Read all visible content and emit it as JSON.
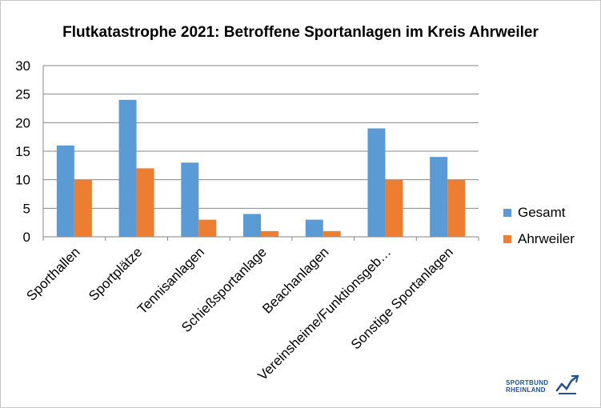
{
  "chart_data": {
    "type": "bar",
    "title": "Flutkatastrophe 2021: Betroffene Sportanlagen im Kreis Ahrweiler",
    "categories": [
      "Sporthallen",
      "Sportplätze",
      "Tennisanlagen",
      "Schießsportanlage",
      "Beachanlagen",
      "Vereinsheime/Funktionsgeb…",
      "Sonstige Sportanlagen"
    ],
    "series": [
      {
        "name": "Gesamt",
        "values": [
          16,
          24,
          13,
          4,
          3,
          19,
          14
        ],
        "color": "#5b9bd5"
      },
      {
        "name": "Ahrweiler",
        "values": [
          10,
          12,
          3,
          1,
          1,
          10,
          10
        ],
        "color": "#ed7d31"
      }
    ],
    "ylim": [
      0,
      30
    ],
    "yticks": [
      0,
      5,
      10,
      15,
      20,
      25,
      30
    ],
    "grid": true,
    "legend_position": "right",
    "xlabel": "",
    "ylabel": ""
  },
  "logo": {
    "line1": "SPORTBUND",
    "line2": "RHEINLAND"
  }
}
